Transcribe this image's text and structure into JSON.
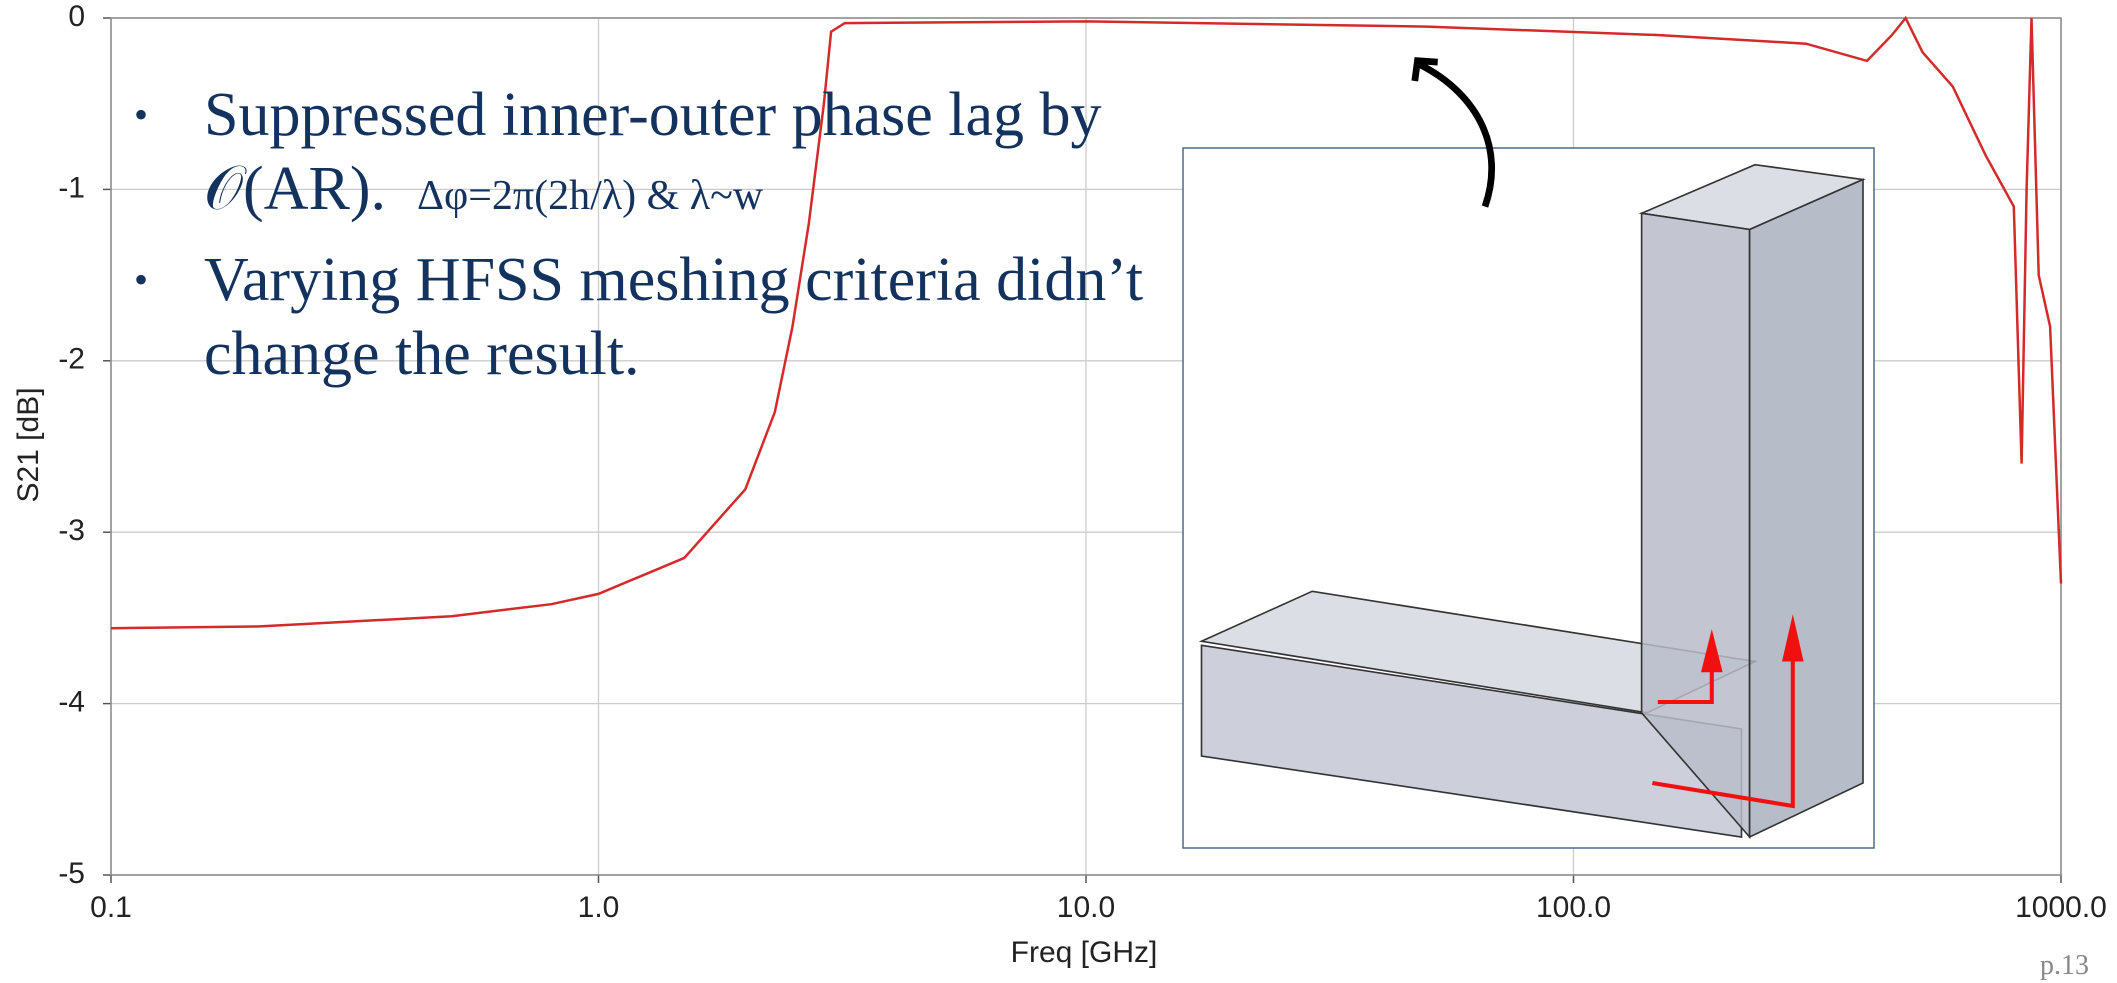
{
  "chart_data": {
    "type": "line",
    "xlabel": "Freq [GHz]",
    "ylabel": "S21 [dB]",
    "xscale": "log",
    "xlim": [
      0.1,
      1000
    ],
    "ylim": [
      -5,
      0
    ],
    "xticks": [
      {
        "value": 0.1,
        "label": "0.1"
      },
      {
        "value": 1,
        "label": "1.0"
      },
      {
        "value": 10,
        "label": "10.0"
      },
      {
        "value": 100,
        "label": "100.0"
      },
      {
        "value": 1000,
        "label": "1000.0"
      }
    ],
    "yticks": [
      0,
      -1,
      -2,
      -3,
      -4,
      -5
    ],
    "grid": true,
    "color": "#d42a2a",
    "x": [
      0.1,
      0.2,
      0.5,
      0.8,
      1.0,
      1.5,
      2.0,
      2.3,
      2.5,
      2.7,
      2.9,
      3.0,
      3.2,
      10,
      50,
      150,
      300,
      400,
      450,
      480,
      520,
      600,
      700,
      800,
      830,
      850,
      870,
      900,
      950,
      1000
    ],
    "values": [
      -3.56,
      -3.55,
      -3.49,
      -3.42,
      -3.36,
      -3.15,
      -2.75,
      -2.3,
      -1.8,
      -1.2,
      -0.5,
      -0.08,
      -0.03,
      -0.02,
      -0.05,
      -0.1,
      -0.15,
      -0.25,
      -0.1,
      0,
      -0.2,
      -0.4,
      -0.8,
      -1.1,
      -2.6,
      -1.0,
      0,
      -1.5,
      -1.8,
      -3.3
    ],
    "annotations": [
      "Suppressed inner-outer phase lag by 𝒪(AR).",
      "Δφ=2π(2h/λ) & λ~w",
      "Varying HFSS meshing criteria didn’t change the result."
    ],
    "page_number": "p.13"
  }
}
